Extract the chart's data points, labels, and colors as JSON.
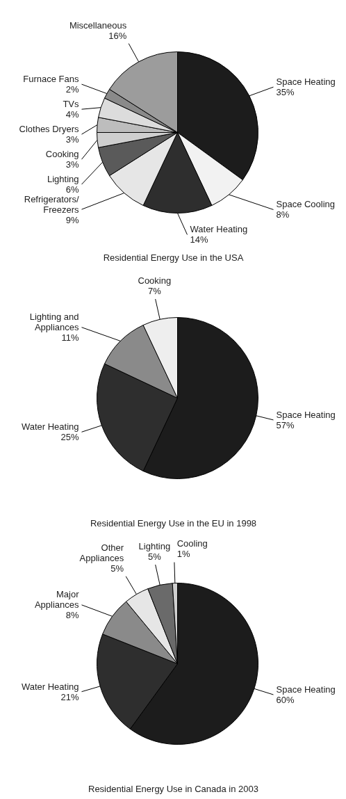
{
  "chart_data": [
    {
      "type": "pie",
      "title": "Residential Energy Use in the USA",
      "categories": [
        "Space Heating",
        "Space Cooling",
        "Water Heating",
        "Refrigerators/Freezers",
        "Lighting",
        "Cooking",
        "Clothes Dryers",
        "TVs",
        "Furnace Fans",
        "Miscellaneous"
      ],
      "values": [
        35,
        8,
        14,
        9,
        6,
        3,
        3,
        4,
        2,
        16
      ],
      "value_labels": [
        "35%",
        "8%",
        "14%",
        "9%",
        "6%",
        "3%",
        "3%",
        "4%",
        "2%",
        "16%"
      ],
      "colors": [
        "#1c1c1c",
        "#f2f2f2",
        "#2e2e2e",
        "#e6e6e6",
        "#5a5a5a",
        "#cfcfcf",
        "#bdbdbd",
        "#dcdcdc",
        "#8a8a8a",
        "#9c9c9c"
      ]
    },
    {
      "type": "pie",
      "title": "Residential Energy Use in the EU in 1998",
      "categories": [
        "Space Heating",
        "Water Heating",
        "Lighting and Appliances",
        "Cooking"
      ],
      "values": [
        57,
        25,
        11,
        7
      ],
      "value_labels": [
        "57%",
        "25%",
        "11%",
        "7%"
      ],
      "colors": [
        "#1c1c1c",
        "#2e2e2e",
        "#8a8a8a",
        "#eeeeee"
      ]
    },
    {
      "type": "pie",
      "title": "Residential Energy Use in Canada in 2003",
      "categories": [
        "Space Heating",
        "Water Heating",
        "Major Appliances",
        "Other Appliances",
        "Lighting",
        "Cooling"
      ],
      "values": [
        60,
        21,
        8,
        5,
        5,
        1
      ],
      "value_labels": [
        "60%",
        "21%",
        "8%",
        "5%",
        "5%",
        "1%"
      ],
      "colors": [
        "#1c1c1c",
        "#2e2e2e",
        "#8a8a8a",
        "#e6e6e6",
        "#6a6a6a",
        "#cfcfcf"
      ]
    }
  ]
}
